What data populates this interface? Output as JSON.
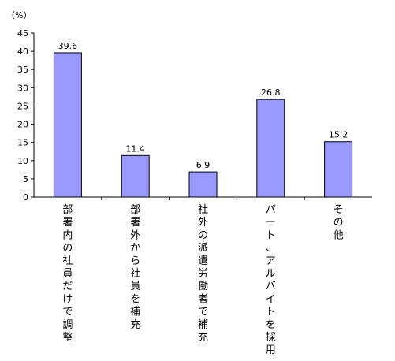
{
  "chart_data": {
    "type": "bar",
    "unit_label": "（%）",
    "categories": [
      "部署内の社員だけで調整",
      "部署外から社員を補充",
      "社外の派遣労働者で補充",
      "パート、アルバイトを採用",
      "その他"
    ],
    "values": [
      39.6,
      11.4,
      6.9,
      26.8,
      15.2
    ],
    "data_labels": [
      "39.6",
      "11.4",
      "6.9",
      "26.8",
      "15.2"
    ],
    "ylim": [
      0,
      45
    ],
    "yticks": [
      0,
      5,
      10,
      15,
      20,
      25,
      30,
      35,
      40,
      45
    ],
    "grid": false,
    "legend": "none",
    "colors": {
      "bar_fill": "#9999FF",
      "bar_stroke": "#000000",
      "axis": "#000000"
    }
  }
}
